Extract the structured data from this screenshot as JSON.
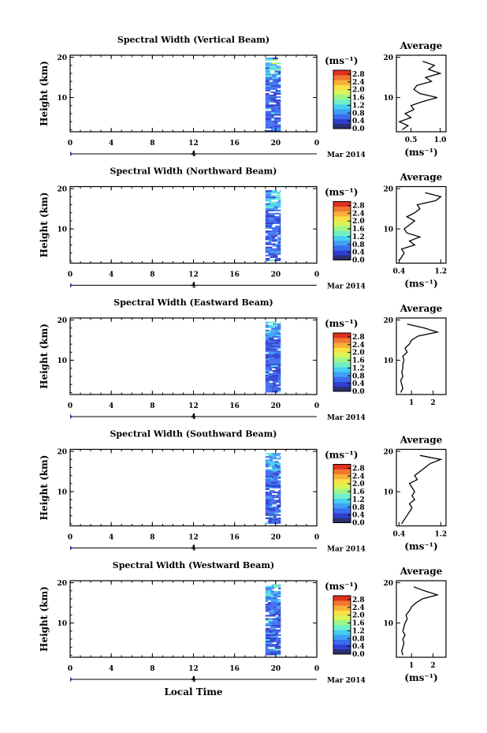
{
  "figure": {
    "xlabel": "Local Time",
    "date_label": "Mar 2014",
    "date_tick_label": "4",
    "side_title": "Average",
    "colorbar_unit": "(ms⁻¹)",
    "side_unit": "(ms⁻¹)",
    "colors": {
      "colormap": [
        "#2b2f6e",
        "#2f3fd0",
        "#3a6cf0",
        "#3fa0f5",
        "#45d0f0",
        "#6ff0c8",
        "#9ff58a",
        "#d8f55a",
        "#f8e048",
        "#f8b038",
        "#f07830",
        "#e03020"
      ]
    }
  },
  "chart_data": [
    {
      "type": "heatmap",
      "title": "Spectral Width (Vertical Beam)",
      "xlabel": "Local Time",
      "ylabel": "Height (km)",
      "xlim": [
        0,
        24
      ],
      "ylim": [
        1.5,
        20.5
      ],
      "x_ticks": [
        "0",
        "4",
        "8",
        "12",
        "16",
        "20",
        "0"
      ],
      "y_ticks": [
        "10",
        "20"
      ],
      "data_x_range": [
        19,
        20.5
      ],
      "data_y_range": [
        1.5,
        19.5
      ],
      "colorbar": {
        "ticks": [
          "0.0",
          "0.4",
          "0.8",
          "1.2",
          "1.6",
          "2.0",
          "2.4",
          "2.8"
        ],
        "range": [
          0,
          3.0
        ]
      },
      "average_profile": {
        "xlabel": "(ms⁻¹)",
        "xlim": [
          0.25,
          1.1
        ],
        "x_ticks": [
          "0.5",
          "1.0"
        ],
        "heights": [
          2,
          3,
          4,
          5,
          6,
          7,
          8,
          9,
          10,
          11,
          12,
          13,
          14,
          15,
          16,
          17,
          18,
          19
        ],
        "values": [
          0.35,
          0.45,
          0.3,
          0.5,
          0.4,
          0.55,
          0.5,
          0.7,
          0.95,
          0.65,
          0.55,
          0.6,
          0.85,
          0.75,
          1.0,
          0.8,
          0.9,
          0.7
        ]
      }
    },
    {
      "type": "heatmap",
      "title": "Spectral Width (Northward Beam)",
      "xlabel": "Local Time",
      "ylabel": "Height (km)",
      "xlim": [
        0,
        24
      ],
      "ylim": [
        1.5,
        20.5
      ],
      "x_ticks": [
        "0",
        "4",
        "8",
        "12",
        "16",
        "20",
        "0"
      ],
      "y_ticks": [
        "10",
        "20"
      ],
      "data_x_range": [
        19,
        20.5
      ],
      "data_y_range": [
        2,
        19.5
      ],
      "colorbar": {
        "ticks": [
          "0.0",
          "0.4",
          "0.8",
          "1.2",
          "1.6",
          "2.0",
          "2.4",
          "2.8"
        ],
        "range": [
          0,
          3.0
        ]
      },
      "average_profile": {
        "xlabel": "(ms⁻¹)",
        "xlim": [
          0.35,
          1.3
        ],
        "x_ticks": [
          "0.4",
          "1.2"
        ],
        "heights": [
          2,
          3,
          4,
          5,
          6,
          7,
          8,
          9,
          10,
          11,
          12,
          13,
          14,
          15,
          16,
          17,
          18,
          19
        ],
        "values": [
          0.4,
          0.45,
          0.5,
          0.45,
          0.7,
          0.6,
          0.8,
          0.55,
          0.5,
          0.6,
          0.7,
          0.55,
          0.7,
          0.8,
          0.75,
          1.1,
          1.2,
          0.9
        ]
      }
    },
    {
      "type": "heatmap",
      "title": "Spectral Width (Eastward Beam)",
      "xlabel": "Local Time",
      "ylabel": "Height (km)",
      "xlim": [
        0,
        24
      ],
      "ylim": [
        1.5,
        20.5
      ],
      "x_ticks": [
        "0",
        "4",
        "8",
        "12",
        "16",
        "20",
        "0"
      ],
      "y_ticks": [
        "10",
        "20"
      ],
      "data_x_range": [
        19,
        20.5
      ],
      "data_y_range": [
        2,
        19.5
      ],
      "colorbar": {
        "ticks": [
          "0.0",
          "0.4",
          "0.8",
          "1.2",
          "1.6",
          "2.0",
          "2.4",
          "2.8"
        ],
        "range": [
          0,
          3.0
        ]
      },
      "average_profile": {
        "xlabel": "",
        "xlim": [
          0.3,
          2.6
        ],
        "x_ticks": [
          "1",
          "2"
        ],
        "heights": [
          2,
          3,
          4,
          5,
          6,
          7,
          8,
          9,
          10,
          11,
          12,
          13,
          14,
          15,
          16,
          17,
          18,
          19
        ],
        "values": [
          0.5,
          0.6,
          0.55,
          0.5,
          0.6,
          0.55,
          0.6,
          0.6,
          0.65,
          0.6,
          0.8,
          0.7,
          0.9,
          1.0,
          1.3,
          2.2,
          1.6,
          0.8
        ]
      }
    },
    {
      "type": "heatmap",
      "title": "Spectral Width (Southward Beam)",
      "xlabel": "Local Time",
      "ylabel": "Height (km)",
      "xlim": [
        0,
        24
      ],
      "ylim": [
        1.5,
        20.5
      ],
      "x_ticks": [
        "0",
        "4",
        "8",
        "12",
        "16",
        "20",
        "0"
      ],
      "y_ticks": [
        "10",
        "20"
      ],
      "data_x_range": [
        19,
        20.5
      ],
      "data_y_range": [
        2,
        19.5
      ],
      "colorbar": {
        "ticks": [
          "0.0",
          "0.4",
          "0.8",
          "1.2",
          "1.6",
          "2.0",
          "2.4",
          "2.8"
        ],
        "range": [
          0,
          3.0
        ]
      },
      "average_profile": {
        "xlabel": "(ms⁻¹)",
        "xlim": [
          0.35,
          1.3
        ],
        "x_ticks": [
          "0.4",
          "1.2"
        ],
        "heights": [
          2,
          3,
          4,
          5,
          6,
          7,
          8,
          9,
          10,
          11,
          12,
          13,
          14,
          15,
          16,
          17,
          18,
          19
        ],
        "values": [
          0.45,
          0.5,
          0.55,
          0.6,
          0.65,
          0.6,
          0.7,
          0.65,
          0.7,
          0.65,
          0.6,
          0.75,
          0.7,
          0.8,
          0.9,
          1.0,
          1.2,
          0.8
        ]
      }
    },
    {
      "type": "heatmap",
      "title": "Spectral Width (Westward Beam)",
      "xlabel": "Local Time",
      "ylabel": "Height (km)",
      "xlim": [
        0,
        24
      ],
      "ylim": [
        1.5,
        20.5
      ],
      "x_ticks": [
        "0",
        "4",
        "8",
        "12",
        "16",
        "20",
        "0"
      ],
      "y_ticks": [
        "10",
        "20"
      ],
      "data_x_range": [
        19,
        20.5
      ],
      "data_y_range": [
        2,
        19.5
      ],
      "colorbar": {
        "ticks": [
          "0.0",
          "0.4",
          "0.8",
          "1.2",
          "1.6",
          "2.0",
          "2.4",
          "2.8"
        ],
        "range": [
          0,
          3.0
        ]
      },
      "average_profile": {
        "xlabel": "(ms⁻¹)",
        "xlim": [
          0.3,
          2.6
        ],
        "x_ticks": [
          "1",
          "2"
        ],
        "heights": [
          2,
          3,
          4,
          5,
          6,
          7,
          8,
          9,
          10,
          11,
          12,
          13,
          14,
          15,
          16,
          17,
          18,
          19
        ],
        "values": [
          0.6,
          0.55,
          0.6,
          0.65,
          0.6,
          0.7,
          0.6,
          0.65,
          0.7,
          0.8,
          0.75,
          0.9,
          1.0,
          1.2,
          1.5,
          2.2,
          1.6,
          1.1
        ]
      }
    }
  ]
}
